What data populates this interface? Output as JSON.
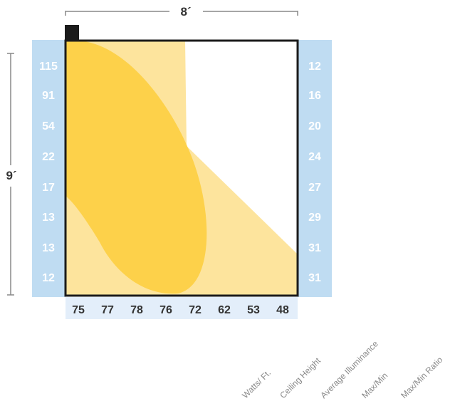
{
  "dimensions": {
    "width_label": "8´",
    "height_label": "9´"
  },
  "left_scale": [
    "115",
    "91",
    "54",
    "22",
    "17",
    "13",
    "13",
    "12"
  ],
  "right_scale": [
    "12",
    "16",
    "20",
    "24",
    "27",
    "29",
    "31",
    "31"
  ],
  "bottom_scale": [
    "75",
    "77",
    "78",
    "76",
    "72",
    "62",
    "53",
    "48"
  ],
  "footer_labels": [
    "Watts/ Ft.",
    "Ceiling Height",
    "Average Illuminance",
    "Max/Min",
    "Max/Min Ratio"
  ],
  "colors": {
    "scale_band": "#bfdcf2",
    "bottom_band": "#e3eefa",
    "light_beam": "#fde49d",
    "intense_beam": "#fdd14a",
    "frame": "#1b1b1b",
    "dimension_line": "#888888"
  },
  "icons": {
    "fixture": "fixture-icon"
  }
}
